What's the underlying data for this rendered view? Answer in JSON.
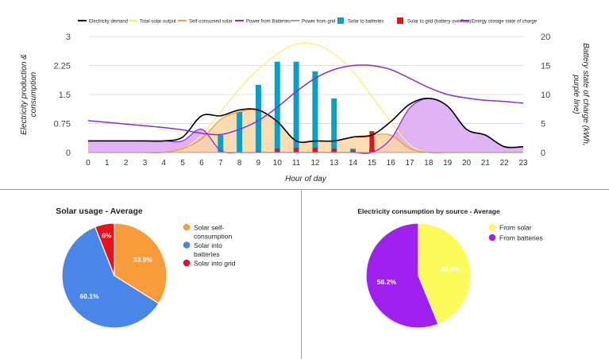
{
  "chart_data": [
    {
      "type": "line",
      "legend_position": "top",
      "legend": [
        {
          "name": "Electricity demand",
          "color": "#000000",
          "marker": "line"
        },
        {
          "name": "Total solar output",
          "color": "#f7f06e",
          "marker": "line"
        },
        {
          "name": "Self-consumed solar",
          "color": "#f39c2b",
          "marker": "line"
        },
        {
          "name": "Power from Batteries",
          "color": "#9b27d8",
          "marker": "line"
        },
        {
          "name": "Power from grid",
          "color": "#9e9e9e",
          "marker": "line"
        },
        {
          "name": "Solar to batteries",
          "color": "#0b9ec6",
          "marker": "box"
        },
        {
          "name": "Solar to grid (battery overflow)",
          "color": "#e6121c",
          "marker": "box"
        },
        {
          "name": "Energy storage state of charge",
          "color": "#8a2be2",
          "marker": "line"
        }
      ],
      "x": [
        0,
        1,
        2,
        3,
        4,
        5,
        6,
        7,
        8,
        9,
        10,
        11,
        12,
        13,
        14,
        15,
        16,
        17,
        18,
        19,
        20,
        21,
        22,
        23
      ],
      "xlabel": "Hour of day",
      "ylabel": "Electricity production & consumption",
      "y2label": "purple line) Battery state of charge (kWh,",
      "ylim": [
        0,
        3
      ],
      "y2lim": [
        0,
        20
      ],
      "yticks": [
        "0",
        "0.75",
        "1.5",
        "2.25",
        "3"
      ],
      "y2ticks": [
        "0",
        "5",
        "10",
        "15",
        "20"
      ],
      "grid": true,
      "series": [
        {
          "name": "Electricity demand",
          "values": [
            0.3,
            0.3,
            0.3,
            0.3,
            0.3,
            0.4,
            0.95,
            0.95,
            1.1,
            1.1,
            0.8,
            0.3,
            0.3,
            0.3,
            0.4,
            0.45,
            0.8,
            1.25,
            1.4,
            1.2,
            0.6,
            0.45,
            0.15,
            0.15
          ]
        },
        {
          "name": "Total solar output",
          "values": [
            0,
            0,
            0,
            0,
            0,
            0.1,
            0.45,
            1.05,
            1.65,
            2.15,
            2.55,
            2.8,
            2.8,
            2.55,
            2.1,
            1.45,
            0.8,
            0.2,
            0,
            0,
            0,
            0,
            0,
            0
          ]
        },
        {
          "name": "Self-consumed solar",
          "values": [
            0,
            0,
            0,
            0,
            0,
            0.1,
            0.35,
            0.85,
            1.05,
            1.1,
            0.8,
            0.3,
            0.3,
            0.3,
            0.4,
            0.45,
            0.45,
            0.1,
            0,
            0,
            0,
            0,
            0,
            0
          ]
        },
        {
          "name": "Power from Batteries",
          "values": [
            0.3,
            0.3,
            0.3,
            0.3,
            0.3,
            0.3,
            0.6,
            0.05,
            0,
            0,
            0,
            0,
            0,
            0,
            0,
            0,
            0.35,
            1.15,
            1.4,
            1.2,
            0.6,
            0.45,
            0.15,
            0.15
          ]
        },
        {
          "name": "Power from grid",
          "values": [
            0,
            0,
            0,
            0,
            0,
            0,
            0,
            0,
            0,
            0,
            0,
            0,
            0,
            0,
            0,
            0,
            0,
            0,
            0,
            0,
            0,
            0,
            0,
            0
          ]
        },
        {
          "name": "Solar to batteries",
          "values": [
            0,
            0,
            0,
            0,
            0,
            0,
            0,
            0.45,
            1.05,
            1.75,
            2.35,
            2.35,
            2.1,
            1.4,
            0.1,
            0.1,
            0,
            0,
            0,
            0,
            0,
            0,
            0,
            0
          ]
        },
        {
          "name": "Solar to grid (battery overflow)",
          "values": [
            0,
            0,
            0,
            0,
            0,
            0,
            0,
            0,
            0,
            0.03,
            0.1,
            0.12,
            0.12,
            0.1,
            0.05,
            0.55,
            0,
            0,
            0,
            0,
            0,
            0,
            0,
            0
          ]
        },
        {
          "name": "Energy storage state of charge",
          "axis": "y2",
          "values": [
            5.5,
            5.2,
            4.9,
            4.6,
            4.3,
            3.9,
            3.3,
            3.1,
            4.0,
            5.5,
            7.8,
            10.5,
            12.8,
            14.3,
            15.0,
            15.0,
            14.3,
            12.8,
            11.2,
            10.0,
            9.4,
            9.0,
            8.8,
            8.5
          ]
        }
      ]
    },
    {
      "type": "pie",
      "title": "Solar usage - Average",
      "legend_position": "right",
      "slices": [
        {
          "label": "Solar self-consumption",
          "value": 33.9,
          "display": "33.9%",
          "color": "#f89b3a"
        },
        {
          "label": "Solar into batteries",
          "value": 60.1,
          "display": "60.1%",
          "color": "#4a86e8"
        },
        {
          "label": "Solar into grid",
          "value": 6.0,
          "display": "6%",
          "color": "#e5121b"
        }
      ]
    },
    {
      "type": "pie",
      "title": "Electricity consumption by source - Average",
      "legend_position": "right",
      "slices": [
        {
          "label": "From solar",
          "value": 43.8,
          "display": "43.8%",
          "color": "#fbfb5c"
        },
        {
          "label": "From batteries",
          "value": 56.2,
          "display": "56.2%",
          "color": "#a020f0"
        }
      ]
    }
  ]
}
